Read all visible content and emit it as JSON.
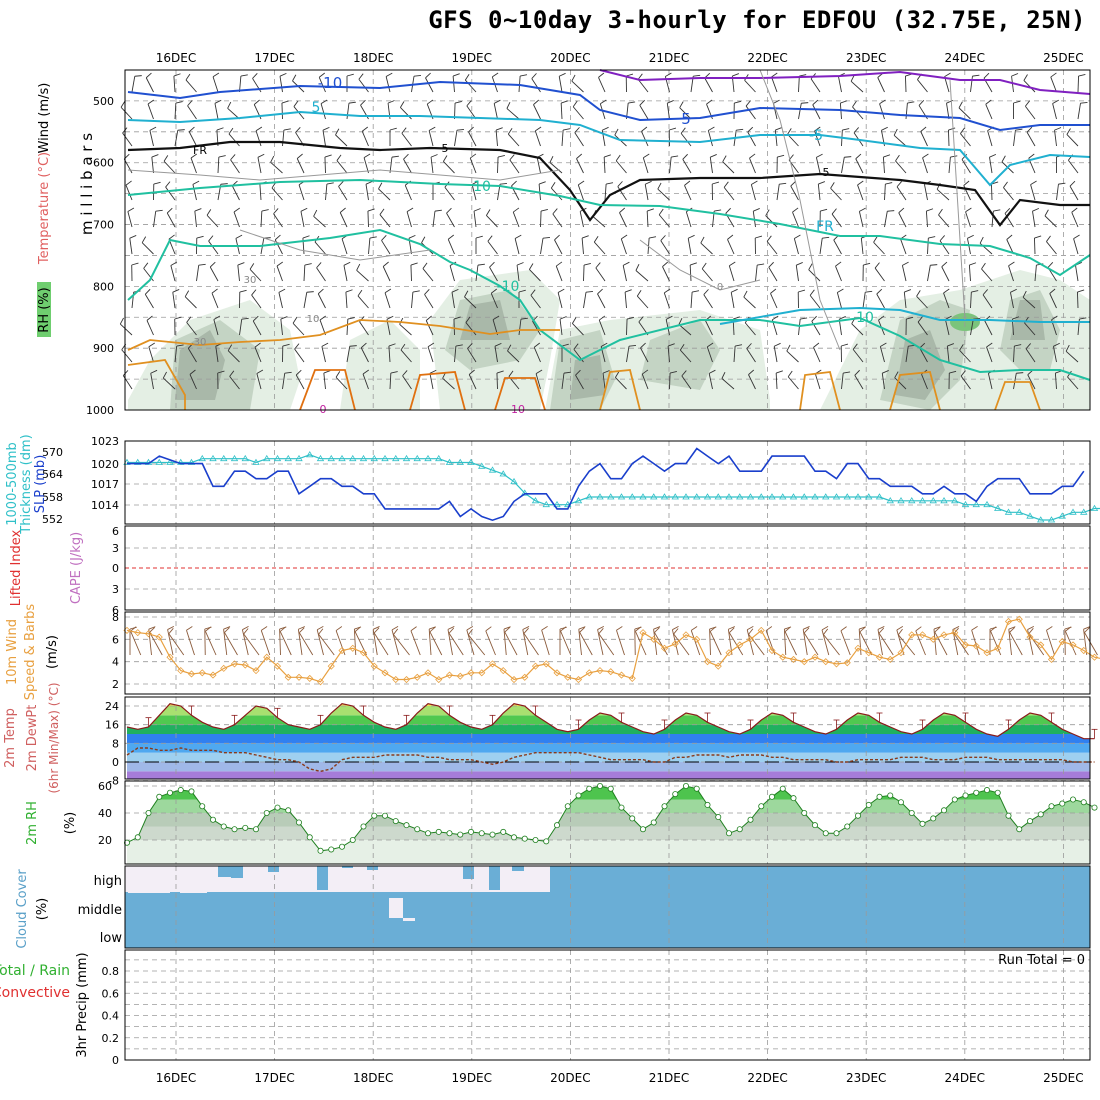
{
  "title": "GFS 0~10day 3-hourly for EDFOU (32.75E, 25N)",
  "colors": {
    "rh_dark": "#a9b8a9",
    "rh_mid": "#c4d4c4",
    "rh_light": "#e4efe4",
    "temp_blue": "#2050d0",
    "temp_cyan": "#20b0d0",
    "temp_teal": "#20c0a0",
    "temp_orange": "#e09020",
    "temp_purple": "#8020c0",
    "slp_line": "#1a3fcc",
    "thickness_line": "#30c0c8",
    "wind_line": "#e8a040",
    "barb": "#8a5a3a",
    "cloud_blue": "#6aaed6",
    "cloud_white": "#f3eef6",
    "rh2m_line": "#208020"
  },
  "chart_data": [
    {
      "type": "area",
      "name": "upper-air",
      "ylabel": [
        "RH (%)",
        "Temperature (°C)",
        "Wind (m/s)"
      ],
      "axis_label": "millibars",
      "x_ticks": [
        "16DEC",
        "17DEC",
        "18DEC",
        "19DEC",
        "20DEC",
        "21DEC",
        "22DEC",
        "23DEC",
        "24DEC",
        "25DEC"
      ],
      "y_ticks": [
        "500",
        "600",
        "700",
        "800",
        "900",
        "1000"
      ],
      "ylim": [
        1000,
        450
      ],
      "contour_labels": [
        "-10",
        "5",
        "FR",
        "5",
        "10",
        "-10",
        "5",
        "FR",
        "5",
        "10",
        "-5",
        "30",
        "10",
        "30",
        "0",
        "0",
        "10"
      ],
      "grid": true
    },
    {
      "type": "line",
      "name": "slp-thickness",
      "ylabel_left": "1000-500mb Thickness (dm)",
      "ylabel_right": "SLP (mb)",
      "thickness_ticks": [
        "570",
        "564",
        "558",
        "552"
      ],
      "slp_ticks": [
        "1023",
        "1020",
        "1017",
        "1014"
      ],
      "slp_ylim": [
        1012,
        1023
      ],
      "series": [
        {
          "key": "slp",
          "values": [
            1020,
            1020,
            1020,
            1021,
            1020.5,
            1020,
            1020,
            1020,
            1017,
            1017,
            1019,
            1019,
            1018,
            1018,
            1019,
            1019,
            1016,
            1017,
            1018,
            1018,
            1017,
            1017,
            1016,
            1016,
            1014,
            1014,
            1014,
            1014,
            1014,
            1014,
            1015,
            1013,
            1014,
            1013,
            1012.5,
            1013,
            1015,
            1016,
            1016,
            1016,
            1014,
            1014,
            1017,
            1019,
            1020,
            1018,
            1018,
            1020,
            1021,
            1020,
            1019,
            1020,
            1020,
            1022,
            1021,
            1020,
            1021,
            1019,
            1019,
            1019,
            1021,
            1021,
            1021,
            1021,
            1019,
            1019,
            1018,
            1020,
            1020,
            1018,
            1018,
            1017,
            1017,
            1017,
            1016,
            1016,
            1017,
            1016,
            1016,
            1015,
            1017,
            1018,
            1018,
            1018,
            1016,
            1016,
            1016,
            1017,
            1017,
            1019
          ]
        },
        {
          "key": "thickness",
          "values": [
            567,
            567,
            567,
            567,
            567,
            567,
            567,
            568,
            568,
            568,
            568,
            568,
            567,
            568,
            568,
            568,
            568,
            569,
            568,
            568,
            568,
            568,
            568,
            568,
            568,
            568,
            568,
            568,
            568,
            568,
            567,
            567,
            567,
            566,
            565,
            564,
            562,
            559,
            557,
            556,
            556,
            556,
            557,
            558,
            558,
            558,
            558,
            558,
            558,
            558,
            558,
            558,
            558,
            558,
            558,
            558,
            558,
            558,
            558,
            558,
            558,
            558,
            558,
            558,
            558,
            558,
            558,
            558,
            558,
            558,
            558,
            557,
            557,
            557,
            557,
            557,
            557,
            557,
            556,
            556,
            556,
            555,
            554,
            554,
            553,
            552,
            552,
            553,
            554,
            554,
            555,
            555,
            555,
            555,
            555,
            555,
            554
          ]
        }
      ]
    },
    {
      "type": "line",
      "name": "lifted-cape",
      "ylabel_left": "Lifted Index",
      "ylabel_right": "CAPE (J/kg)",
      "y_ticks": [
        "6",
        "3",
        "0",
        "3",
        "6"
      ],
      "series": [
        {
          "key": "lifted_index",
          "values": []
        }
      ]
    },
    {
      "type": "line",
      "name": "wind-10m",
      "ylabel": [
        "10m Wind Speed",
        "& Barbs",
        "(m/s)"
      ],
      "y_ticks": [
        "8",
        "6",
        "4",
        "2"
      ],
      "ylim": [
        1,
        8
      ],
      "series": [
        {
          "key": "wind",
          "values": [
            6.8,
            6.6,
            6.5,
            6.2,
            4.4,
            3.2,
            2.9,
            3.0,
            2.8,
            3.4,
            3.8,
            3.7,
            3.2,
            4.4,
            3.6,
            2.6,
            2.6,
            2.5,
            2.2,
            3.6,
            5.0,
            5.2,
            4.8,
            3.6,
            3.0,
            2.4,
            2.4,
            2.6,
            3.0,
            2.4,
            2.8,
            2.7,
            3.0,
            3.0,
            3.8,
            3.2,
            2.4,
            2.6,
            3.6,
            3.8,
            3.0,
            2.6,
            2.4,
            3.0,
            3.2,
            3.1,
            2.8,
            2.5,
            6.6,
            6.0,
            5.2,
            5.6,
            6.4,
            6.0,
            4.0,
            3.6,
            4.8,
            5.5,
            6.0,
            6.8,
            5.0,
            4.4,
            4.2,
            4.0,
            4.4,
            4.0,
            3.8,
            3.9,
            5.2,
            4.8,
            4.4,
            4.2,
            4.8,
            6.4,
            6.4,
            6.0,
            6.4,
            6.6,
            5.5,
            5.4,
            4.8,
            5.2,
            7.6,
            7.8,
            6.2,
            5.5,
            4.2,
            5.8,
            5.5,
            5.0,
            4.4,
            4.2,
            4.0,
            4.8,
            6.2,
            6.8,
            5.6,
            4.8,
            4.4,
            4.2,
            3.6,
            1.2
          ]
        }
      ]
    },
    {
      "type": "area",
      "name": "temperature-2m",
      "ylabel": [
        "2m Temp",
        "2m DewPt",
        "(6hr Min/Max) (°C)"
      ],
      "y_ticks": [
        "24",
        "16",
        "8",
        "0",
        "-8"
      ],
      "ylim": [
        -8,
        28
      ],
      "series": [
        {
          "key": "temp",
          "values": [
            15,
            14,
            15,
            20,
            25,
            24,
            20,
            17,
            15,
            14,
            16,
            20,
            24,
            23,
            19,
            16,
            15,
            14,
            16,
            21,
            25,
            24,
            20,
            17,
            15,
            14,
            16,
            21,
            25,
            24,
            20,
            17,
            15,
            14,
            16,
            21,
            25,
            24,
            20,
            17,
            14,
            13,
            14,
            18,
            21,
            20,
            17,
            15,
            13,
            12,
            14,
            18,
            21,
            20,
            17,
            15,
            13,
            12,
            14,
            18,
            21,
            20,
            17,
            15,
            13,
            12,
            14,
            18,
            21,
            20,
            17,
            15,
            13,
            12,
            14,
            18,
            21,
            20,
            17,
            14,
            12,
            11,
            14,
            18,
            21,
            20,
            17,
            14,
            12,
            10,
            10
          ]
        },
        {
          "key": "dewpoint",
          "values": [
            3,
            6,
            6,
            5,
            5,
            6,
            5,
            5,
            5,
            4,
            4,
            4,
            3,
            2,
            1,
            1,
            0,
            -3,
            -4,
            -3,
            1,
            2,
            2,
            2,
            3,
            3,
            3,
            3,
            2,
            2,
            1,
            1,
            1,
            0,
            -1,
            0,
            2,
            3,
            4,
            4,
            4,
            4,
            4,
            3,
            2,
            1,
            1,
            1,
            1,
            0,
            0,
            2,
            2,
            3,
            3,
            3,
            2,
            3,
            3,
            3,
            2,
            2,
            1,
            1,
            1,
            1,
            0,
            0,
            1,
            1,
            1,
            1,
            2,
            2,
            2,
            1,
            1,
            1,
            2,
            2,
            2,
            1,
            1,
            1,
            1,
            1,
            1,
            1,
            0,
            0,
            0
          ]
        }
      ]
    },
    {
      "type": "area",
      "name": "rh-2m",
      "ylabel": [
        "2m RH",
        "(%)"
      ],
      "y_ticks": [
        "60",
        "40",
        "20"
      ],
      "ylim": [
        8,
        62
      ],
      "series": [
        {
          "key": "rh",
          "values": [
            18,
            22,
            40,
            52,
            55,
            57,
            56,
            45,
            35,
            30,
            28,
            29,
            28,
            40,
            44,
            42,
            33,
            22,
            12,
            13,
            15,
            20,
            30,
            38,
            38,
            34,
            31,
            28,
            25,
            26,
            25,
            24,
            26,
            25,
            24,
            26,
            22,
            21,
            20,
            19,
            31,
            45,
            53,
            58,
            60,
            58,
            44,
            36,
            28,
            33,
            45,
            54,
            60,
            58,
            46,
            37,
            25,
            28,
            35,
            45,
            52,
            58,
            51,
            40,
            31,
            25,
            25,
            30,
            38,
            46,
            52,
            53,
            48,
            40,
            32,
            36,
            42,
            50,
            53,
            55,
            57,
            55,
            38,
            28,
            34,
            39,
            45,
            47,
            50,
            48,
            44
          ]
        }
      ]
    },
    {
      "type": "area",
      "name": "cloud-cover",
      "ylabel": [
        "Cloud Cover",
        "(%)"
      ],
      "level_labels": [
        "high",
        "middle",
        "low"
      ]
    },
    {
      "type": "bar",
      "name": "precip-3hr",
      "ylabel": [
        "Total / Rain",
        "Convective",
        "3hr Precip (mm)"
      ],
      "y_ticks": [
        "0.8",
        "0.6",
        "0.4",
        "0.2",
        "0"
      ],
      "ylim": [
        0,
        1
      ],
      "run_total_label": "Run Total = 0",
      "values": []
    }
  ]
}
